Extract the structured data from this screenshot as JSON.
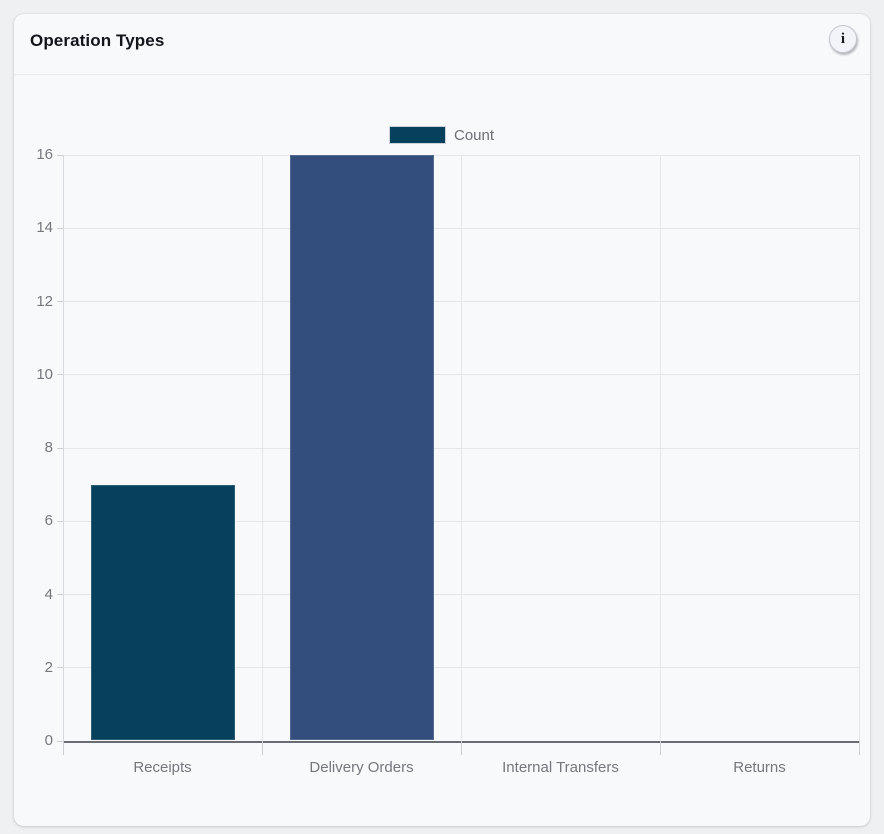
{
  "card": {
    "title": "Operation Types",
    "info_icon": "i"
  },
  "chart_data": {
    "type": "bar",
    "title": "Operation Types",
    "categories": [
      "Receipts",
      "Delivery Orders",
      "Internal Transfers",
      "Returns"
    ],
    "series": [
      {
        "name": "Count",
        "values": [
          7,
          16,
          0,
          0
        ],
        "bar_colors": [
          "#05405c",
          "#334e7d",
          null,
          null
        ],
        "legend_color": "#05405c"
      }
    ],
    "xlabel": "",
    "ylabel": "",
    "ylim": [
      0,
      16
    ],
    "yticks": [
      0,
      2,
      4,
      6,
      8,
      10,
      12,
      14,
      16
    ],
    "grid": true,
    "legend_position": "top",
    "colors": {
      "gridline": "#e4e6ea",
      "axis_bottom": "#696d73",
      "tick_label": "#74787d",
      "legend_label": "#6b6f75"
    }
  }
}
